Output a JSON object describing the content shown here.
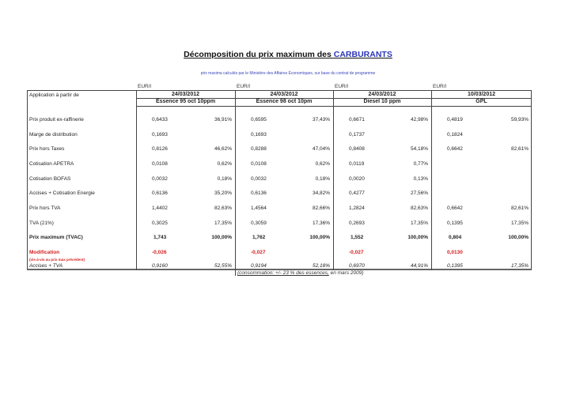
{
  "title": {
    "prefix": "Décomposition du prix maximum des ",
    "accent": "CARBURANTS"
  },
  "subtitle": "prix maxima calculés par le Ministère des Affaires Économiques, sur base du contrat de programme",
  "application_label": "Application à partir de",
  "columns": [
    {
      "unit": "EUR/l",
      "date": "24/03/2012",
      "product": "Essence 95 oct 10ppm"
    },
    {
      "unit": "EUR/l",
      "date": "24/03/2012",
      "product": "Essence 98 oct 10pm"
    },
    {
      "unit": "EUR/l",
      "date": "24/03/2012",
      "product": "Diesel 10 ppm"
    },
    {
      "unit": "EUR/l",
      "date": "10/03/2012",
      "product": "GPL"
    }
  ],
  "rows": [
    {
      "label": "Prix produit ex-raffinerie",
      "style": "",
      "values": [
        [
          "0,6433",
          "36,91%"
        ],
        [
          "0,6595",
          "37,43%"
        ],
        [
          "0,6671",
          "42,98%"
        ],
        [
          "0,4819",
          "59,93%"
        ]
      ]
    },
    {
      "label": "Marge de distribution",
      "style": "",
      "values": [
        [
          "0,1693",
          ""
        ],
        [
          "0,1693",
          ""
        ],
        [
          "0,1737",
          ""
        ],
        [
          "0,1824",
          ""
        ]
      ]
    },
    {
      "label": "Prix hors Taxes",
      "style": "",
      "values": [
        [
          "0,8126",
          "46,62%"
        ],
        [
          "0,8288",
          "47,04%"
        ],
        [
          "0,8408",
          "54,18%"
        ],
        [
          "0,6642",
          "82,61%"
        ]
      ]
    },
    {
      "label": "Cotisation APETRA",
      "style": "",
      "values": [
        [
          "0,0108",
          "0,62%"
        ],
        [
          "0,0108",
          "0,62%"
        ],
        [
          "0,0119",
          "0,77%"
        ],
        [
          "",
          ""
        ]
      ]
    },
    {
      "label": "Cotisation BOFAS",
      "style": "",
      "values": [
        [
          "0,0032",
          "0,18%"
        ],
        [
          "0,0032",
          "0,18%"
        ],
        [
          "0,0020",
          "0,13%"
        ],
        [
          "",
          ""
        ]
      ]
    },
    {
      "label": "Accises + Cotisation Energie",
      "style": "",
      "values": [
        [
          "0,6136",
          "35,20%"
        ],
        [
          "0,6136",
          "34,82%"
        ],
        [
          "0,4277",
          "27,56%"
        ],
        [
          "",
          ""
        ]
      ]
    },
    {
      "label": "Prix hors TVA",
      "style": "",
      "values": [
        [
          "1,4402",
          "82,63%"
        ],
        [
          "1,4564",
          "82,66%"
        ],
        [
          "1,2824",
          "82,63%"
        ],
        [
          "0,6642",
          "82,61%"
        ]
      ]
    },
    {
      "label": "TVA (21%)",
      "style": "",
      "values": [
        [
          "0,3025",
          "17,35%"
        ],
        [
          "0,3059",
          "17,36%"
        ],
        [
          "0,2693",
          "17,35%"
        ],
        [
          "0,1395",
          "17,35%"
        ]
      ]
    },
    {
      "label": "Prix maximum (TVAC)",
      "style": "bold",
      "values": [
        [
          "1,743",
          "100,00%"
        ],
        [
          "1,762",
          "100,00%"
        ],
        [
          "1,552",
          "100,00%"
        ],
        [
          "0,804",
          "100,00%"
        ]
      ]
    },
    {
      "label": "Modification",
      "sublabel": "(vis-à-vis au prix max précédent)",
      "style": "red",
      "values": [
        [
          "-0,026",
          ""
        ],
        [
          "-0,027",
          ""
        ],
        [
          "-0,027",
          ""
        ],
        [
          "0,0130",
          ""
        ]
      ]
    },
    {
      "label": "Accises + TVA",
      "style": "it",
      "values": [
        [
          "0,9160",
          "52,55%"
        ],
        [
          "0,9194",
          "52,18%"
        ],
        [
          "0,6970",
          "44,91%"
        ],
        [
          "0,1395",
          "17,35%"
        ]
      ]
    }
  ],
  "note": {
    "underlined": "(consommation: +/- 23 % des essences,",
    "rest": " en mars 2009)"
  }
}
